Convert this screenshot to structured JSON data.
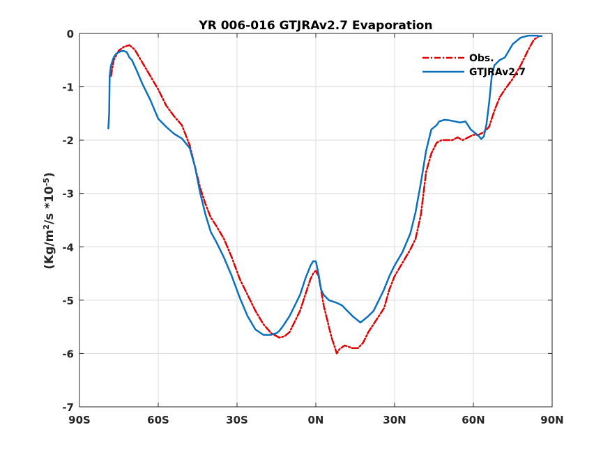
{
  "chart_data": {
    "type": "line",
    "title": "YR 006-016 GTJRAv2.7 Evaporation",
    "xlabel": "",
    "ylabel_parts": [
      "(Kg/m",
      "2",
      "/s *10",
      "-5",
      ")"
    ],
    "xlim": [
      -90,
      90
    ],
    "ylim": [
      -7,
      0
    ],
    "grid": true,
    "legend_position": "top-right",
    "x_ticks": [
      {
        "value": -90,
        "label": "90S"
      },
      {
        "value": -60,
        "label": "60S"
      },
      {
        "value": -30,
        "label": "30S"
      },
      {
        "value": 0,
        "label": "0N"
      },
      {
        "value": 30,
        "label": "30N"
      },
      {
        "value": 60,
        "label": "60N"
      },
      {
        "value": 90,
        "label": "90N"
      }
    ],
    "y_ticks": [
      {
        "value": 0,
        "label": "0"
      },
      {
        "value": -1,
        "label": "-1"
      },
      {
        "value": -2,
        "label": "-2"
      },
      {
        "value": -3,
        "label": "-3"
      },
      {
        "value": -4,
        "label": "-4"
      },
      {
        "value": -5,
        "label": "-5"
      },
      {
        "value": -6,
        "label": "-6"
      },
      {
        "value": -7,
        "label": "-7"
      }
    ],
    "series": [
      {
        "name": "Obs.",
        "color": "#e00000",
        "dash": "dashdot",
        "x": [
          -78,
          -77,
          -75,
          -73,
          -71,
          -69,
          -66,
          -63,
          -60,
          -57,
          -54,
          -51,
          -48,
          -46,
          -44,
          -42,
          -40,
          -38,
          -35,
          -32,
          -29,
          -26,
          -23,
          -20,
          -17,
          -14,
          -12,
          -10,
          -8,
          -6,
          -4,
          -2,
          -1,
          0,
          1,
          2,
          3,
          4,
          5,
          6,
          7,
          8,
          9,
          11,
          14,
          16,
          18,
          20,
          22,
          24,
          26,
          28,
          30,
          33,
          36,
          38,
          40,
          42,
          44,
          46,
          48,
          50,
          52,
          54,
          56,
          58,
          60,
          62,
          64,
          66,
          68,
          70,
          72,
          75,
          78,
          81,
          83,
          85,
          86
        ],
        "y": [
          -0.8,
          -0.5,
          -0.32,
          -0.25,
          -0.22,
          -0.3,
          -0.55,
          -0.8,
          -1.05,
          -1.35,
          -1.55,
          -1.72,
          -2.1,
          -2.5,
          -2.9,
          -3.2,
          -3.45,
          -3.6,
          -3.85,
          -4.2,
          -4.6,
          -4.9,
          -5.2,
          -5.45,
          -5.62,
          -5.7,
          -5.68,
          -5.6,
          -5.4,
          -5.2,
          -4.9,
          -4.6,
          -4.5,
          -4.45,
          -4.55,
          -4.8,
          -5.1,
          -5.3,
          -5.5,
          -5.7,
          -5.85,
          -6.0,
          -5.92,
          -5.85,
          -5.9,
          -5.9,
          -5.8,
          -5.6,
          -5.45,
          -5.3,
          -5.15,
          -4.8,
          -4.55,
          -4.3,
          -4.05,
          -3.85,
          -3.4,
          -2.6,
          -2.25,
          -2.05,
          -2.0,
          -2.0,
          -2.0,
          -1.95,
          -2.0,
          -1.95,
          -1.9,
          -1.9,
          -1.85,
          -1.75,
          -1.45,
          -1.2,
          -1.05,
          -0.85,
          -0.6,
          -0.3,
          -0.12,
          -0.05,
          -0.05
        ]
      },
      {
        "name": "GTJRAv2.7",
        "color": "#0a6fbd",
        "dash": "solid",
        "x": [
          -79,
          -78.7,
          -78.5,
          -78,
          -77,
          -76,
          -75,
          -74,
          -73,
          -72,
          -71,
          -70,
          -68,
          -66,
          -63,
          -60,
          -57,
          -54,
          -51,
          -48,
          -46,
          -44,
          -42,
          -40,
          -38,
          -35,
          -32,
          -29,
          -26,
          -23,
          -20,
          -17,
          -15,
          -14,
          -13,
          -12,
          -10,
          -8,
          -6,
          -4,
          -2,
          -1,
          0,
          1,
          2,
          3,
          5,
          8,
          10,
          12,
          14,
          16,
          17,
          18,
          20,
          22,
          24,
          26,
          28,
          30,
          33,
          36,
          38,
          40,
          42,
          44,
          46,
          47,
          49,
          51,
          53,
          55,
          57,
          59,
          61,
          62,
          63,
          64,
          65,
          66,
          67,
          68,
          70,
          72,
          75,
          78,
          81,
          83,
          84,
          85,
          86
        ],
        "y": [
          -1.78,
          -1.5,
          -0.8,
          -0.6,
          -0.45,
          -0.38,
          -0.35,
          -0.33,
          -0.33,
          -0.35,
          -0.45,
          -0.5,
          -0.72,
          -0.95,
          -1.25,
          -1.6,
          -1.75,
          -1.88,
          -1.97,
          -2.15,
          -2.5,
          -3.0,
          -3.4,
          -3.72,
          -3.9,
          -4.2,
          -4.55,
          -4.95,
          -5.3,
          -5.55,
          -5.65,
          -5.65,
          -5.62,
          -5.58,
          -5.52,
          -5.45,
          -5.3,
          -5.1,
          -4.9,
          -4.6,
          -4.35,
          -4.27,
          -4.27,
          -4.5,
          -4.8,
          -4.9,
          -5.0,
          -5.05,
          -5.1,
          -5.2,
          -5.3,
          -5.38,
          -5.42,
          -5.38,
          -5.3,
          -5.2,
          -5.0,
          -4.8,
          -4.55,
          -4.35,
          -4.1,
          -3.75,
          -3.35,
          -2.8,
          -2.2,
          -1.8,
          -1.72,
          -1.65,
          -1.62,
          -1.63,
          -1.65,
          -1.67,
          -1.65,
          -1.8,
          -1.88,
          -1.92,
          -1.98,
          -1.93,
          -1.7,
          -1.3,
          -0.8,
          -0.6,
          -0.5,
          -0.45,
          -0.2,
          -0.08,
          -0.04,
          -0.04,
          -0.04,
          -0.05,
          -0.05
        ]
      }
    ]
  }
}
